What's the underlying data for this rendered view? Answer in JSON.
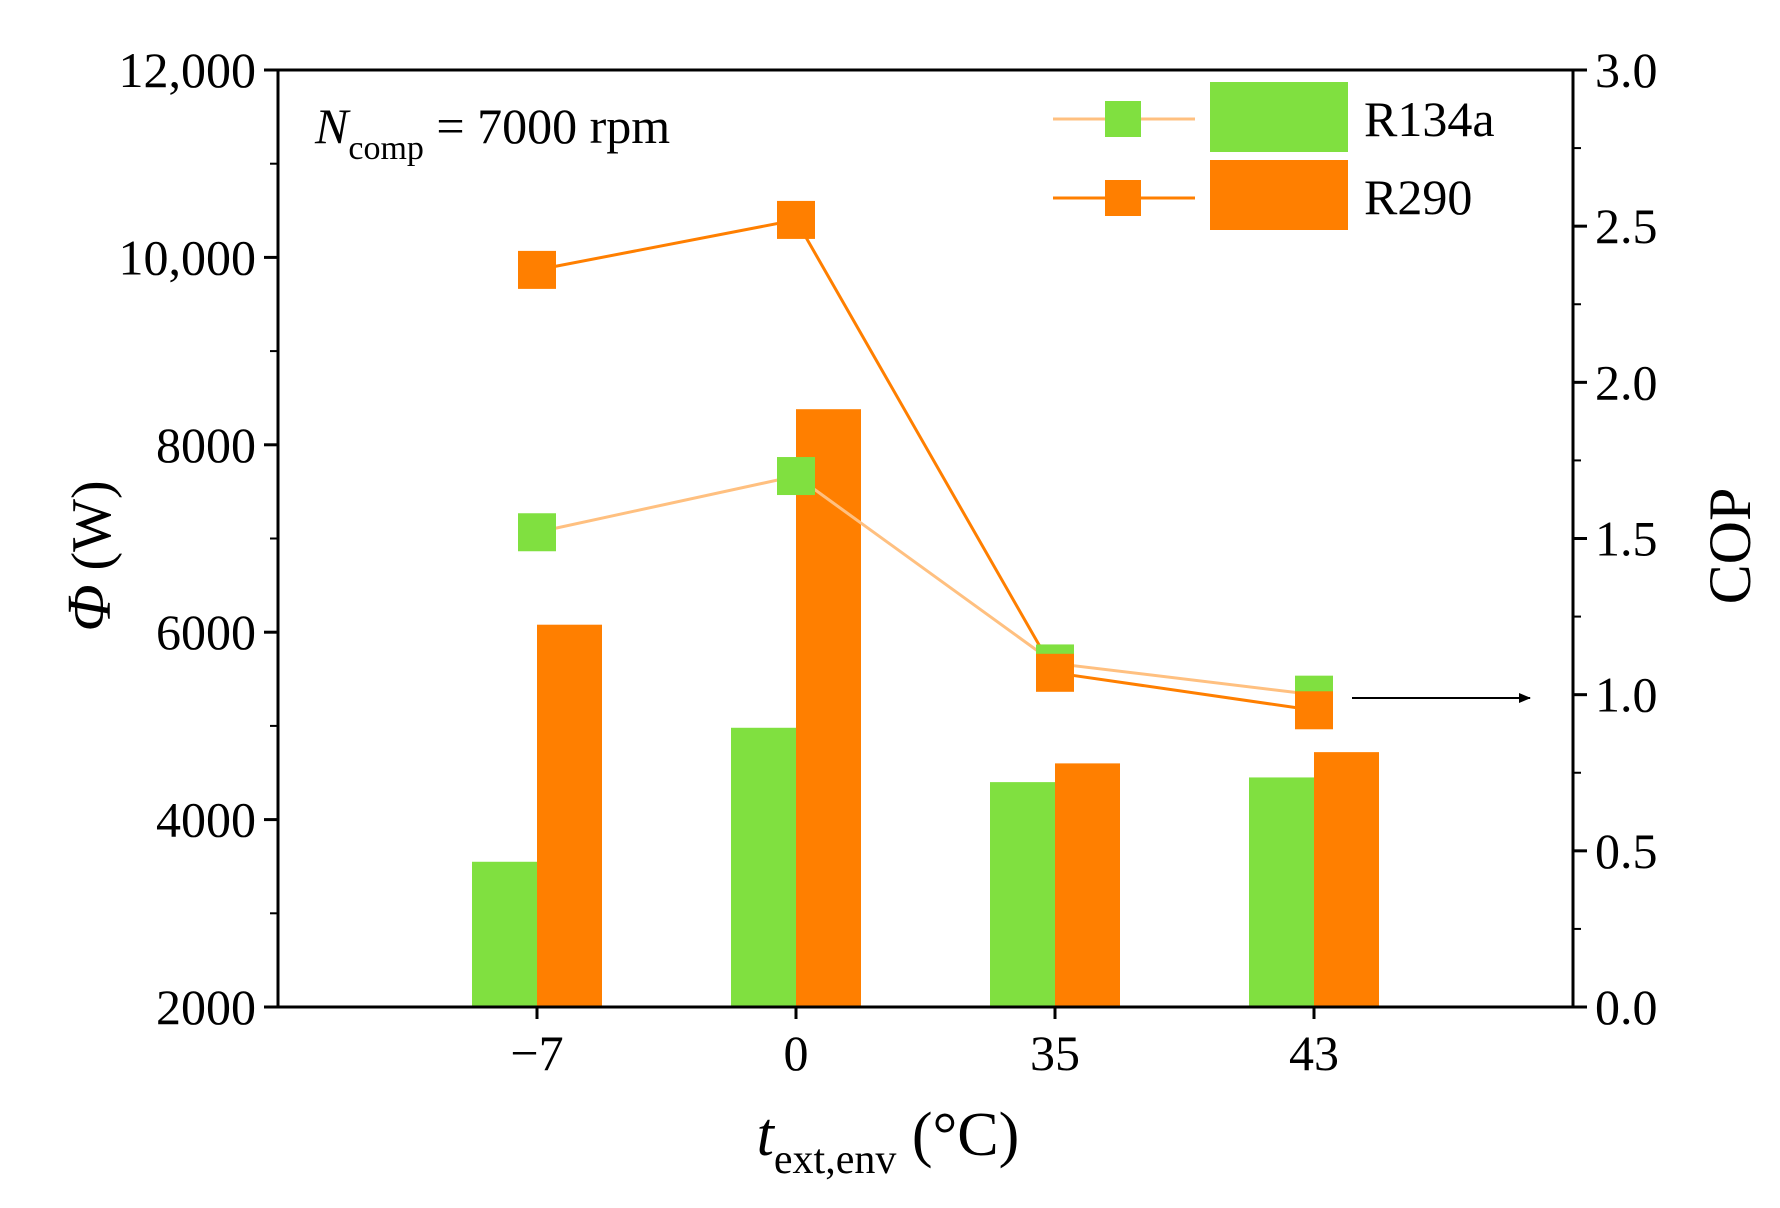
{
  "chart_data": {
    "type": "bar",
    "annotation": {
      "symbol": "N",
      "subscript": "comp",
      "rest": " = 7000 rpm"
    },
    "categories": [
      "−7",
      "0",
      "35",
      "43"
    ],
    "x_axis": {
      "symbol": "t",
      "subscript": "ext,env",
      "unit": " (°C)"
    },
    "y_left": {
      "symbol": "Φ",
      "unit": " (W)",
      "ylim": [
        2000,
        12000
      ],
      "ticks": [
        2000,
        4000,
        6000,
        8000,
        10000,
        12000
      ],
      "tick_labels": [
        "2000",
        "4000",
        "6000",
        "8000",
        "10,000",
        "12,000"
      ]
    },
    "y_right": {
      "label": "COP",
      "ylim": [
        0,
        3
      ],
      "ticks": [
        0,
        0.5,
        1.0,
        1.5,
        2.0,
        2.5,
        3.0
      ],
      "tick_labels": [
        "0.0",
        "0.5",
        "1.0",
        "1.5",
        "2.0",
        "2.5",
        "3.0"
      ]
    },
    "bar_series": [
      {
        "name": "R134a",
        "axis": "left",
        "color": "#80e040",
        "values": [
          3550,
          4980,
          4400,
          4450
        ]
      },
      {
        "name": "R290",
        "axis": "left",
        "color": "#ff7f00",
        "values": [
          6080,
          8380,
          4600,
          4720
        ]
      }
    ],
    "line_series": [
      {
        "name": "R134a",
        "axis": "right",
        "line_color": "#ffc080",
        "marker_color": "#80e040",
        "values": [
          1.52,
          1.7,
          1.1,
          1.0
        ]
      },
      {
        "name": "R290",
        "axis": "right",
        "line_color": "#ff7f00",
        "marker_color": "#ff7f00",
        "values": [
          2.36,
          2.52,
          1.07,
          0.95
        ]
      }
    ],
    "arrow_note": "COP series read on right axis",
    "legend": {
      "position": "top-right",
      "entries": [
        "R134a",
        "R290"
      ]
    }
  }
}
